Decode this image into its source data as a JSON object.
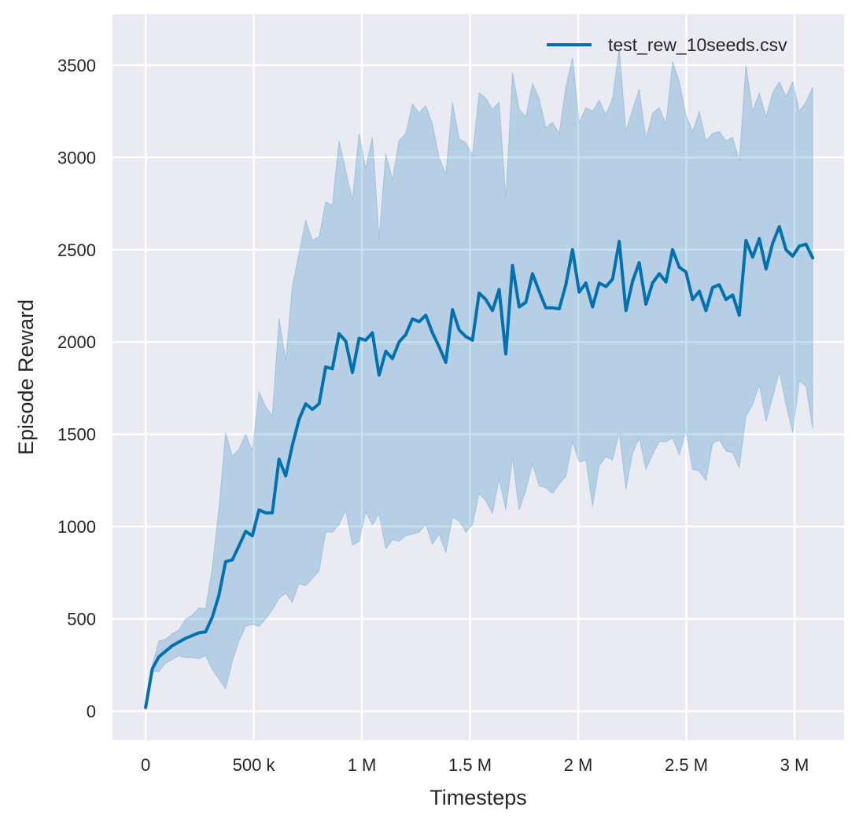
{
  "chart_data": {
    "type": "line",
    "title": "",
    "xlabel": "Timesteps",
    "ylabel": "Episode Reward",
    "xlim": [
      -153000,
      3229000
    ],
    "ylim": [
      -157,
      3776
    ],
    "grid": true,
    "legend_position": "top-right",
    "x_ticks": [
      0,
      500000,
      1000000,
      1500000,
      2000000,
      2500000,
      3000000
    ],
    "x_tick_labels": [
      "0",
      "500 k",
      "1 M",
      "1.5 M",
      "2 M",
      "2.5 M",
      "3 M"
    ],
    "y_ticks": [
      0,
      500,
      1000,
      1500,
      2000,
      2500,
      3000,
      3500
    ],
    "y_tick_labels": [
      "0",
      "500",
      "1000",
      "1500",
      "2000",
      "2500",
      "3000",
      "3500"
    ],
    "colors": {
      "line": "#0072b2",
      "band": "#0072b2",
      "plot_background": "#eaeaf2",
      "grid": "#ffffff"
    },
    "x_start": 0,
    "x_step": 30840,
    "series": [
      {
        "name": "test_rew_10seeds.csv",
        "mean": [
          20,
          230,
          295,
          325,
          355,
          375,
          395,
          410,
          425,
          430,
          510,
          630,
          810,
          820,
          895,
          975,
          950,
          1090,
          1075,
          1075,
          1365,
          1275,
          1440,
          1580,
          1665,
          1635,
          1665,
          1865,
          1855,
          2045,
          2005,
          1835,
          2020,
          2010,
          2050,
          1820,
          1950,
          1910,
          2000,
          2040,
          2125,
          2110,
          2145,
          2050,
          1975,
          1890,
          2175,
          2065,
          2030,
          2010,
          2265,
          2230,
          2170,
          2285,
          1935,
          2415,
          2190,
          2215,
          2370,
          2275,
          2185,
          2185,
          2180,
          2310,
          2500,
          2270,
          2320,
          2190,
          2320,
          2300,
          2340,
          2545,
          2170,
          2330,
          2430,
          2205,
          2320,
          2370,
          2325,
          2500,
          2405,
          2380,
          2230,
          2275,
          2170,
          2295,
          2310,
          2230,
          2255,
          2145,
          2550,
          2460,
          2560,
          2395,
          2535,
          2625,
          2500,
          2465,
          2520,
          2530,
          2455
        ],
        "upper": [
          20,
          250,
          380,
          390,
          420,
          440,
          500,
          520,
          560,
          555,
          780,
          1100,
          1510,
          1380,
          1420,
          1500,
          1410,
          1730,
          1650,
          1600,
          2130,
          1900,
          2300,
          2480,
          2660,
          2550,
          2570,
          2760,
          2740,
          3090,
          2930,
          2770,
          3130,
          2940,
          3110,
          2560,
          3020,
          2880,
          3090,
          3130,
          3290,
          3240,
          3280,
          3180,
          3000,
          2910,
          3300,
          3100,
          3080,
          3010,
          3350,
          3320,
          3260,
          3300,
          2780,
          3460,
          3260,
          3220,
          3400,
          3320,
          3160,
          3190,
          3130,
          3380,
          3540,
          3190,
          3270,
          3250,
          3310,
          3230,
          3320,
          3590,
          3140,
          3260,
          3370,
          3100,
          3240,
          3270,
          3180,
          3520,
          3410,
          3230,
          3140,
          3250,
          3090,
          3130,
          3140,
          3090,
          3110,
          2980,
          3500,
          3250,
          3350,
          3220,
          3350,
          3410,
          3330,
          3410,
          3250,
          3300,
          3380
        ],
        "lower": [
          20,
          215,
          215,
          260,
          280,
          300,
          290,
          290,
          285,
          300,
          225,
          175,
          120,
          270,
          380,
          460,
          470,
          460,
          500,
          550,
          610,
          640,
          590,
          690,
          680,
          720,
          760,
          970,
          970,
          1010,
          1090,
          900,
          920,
          1080,
          1010,
          1070,
          880,
          930,
          920,
          950,
          960,
          970,
          1010,
          905,
          960,
          860,
          1050,
          1030,
          970,
          1010,
          1180,
          1140,
          1070,
          1260,
          1090,
          1370,
          1090,
          1200,
          1340,
          1220,
          1210,
          1180,
          1230,
          1270,
          1460,
          1350,
          1360,
          1110,
          1330,
          1380,
          1360,
          1510,
          1200,
          1400,
          1480,
          1310,
          1390,
          1460,
          1460,
          1480,
          1390,
          1520,
          1310,
          1300,
          1250,
          1450,
          1470,
          1410,
          1400,
          1320,
          1600,
          1660,
          1770,
          1570,
          1700,
          1840,
          1660,
          1510,
          1790,
          1760,
          1530
        ]
      }
    ]
  }
}
